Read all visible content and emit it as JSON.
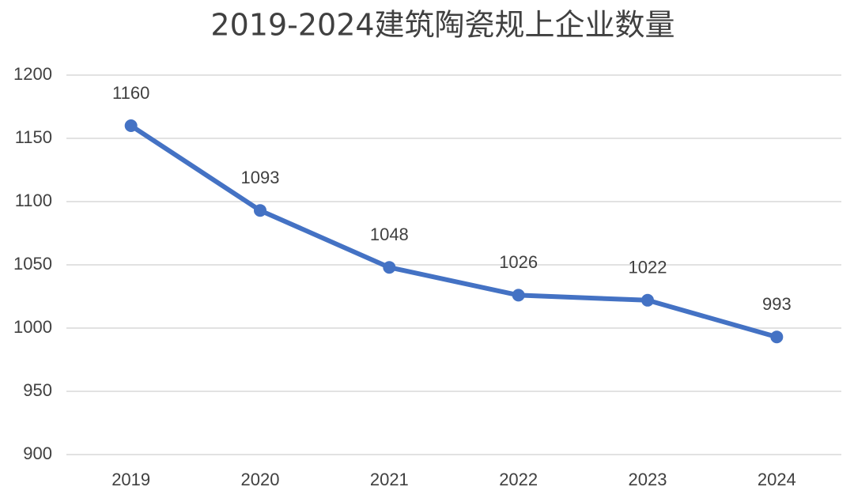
{
  "chart_data": {
    "type": "line",
    "title": "2019-2024建筑陶瓷规上企业数量",
    "categories": [
      "2019",
      "2020",
      "2021",
      "2022",
      "2023",
      "2024"
    ],
    "series": [
      {
        "name": "企业数量",
        "color": "#4472c4",
        "values": [
          1160,
          1093,
          1048,
          1026,
          1022,
          993
        ]
      }
    ],
    "ylim": [
      900,
      1200
    ],
    "yticks": [
      900,
      950,
      1000,
      1050,
      1100,
      1150,
      1200
    ],
    "grid": true
  }
}
